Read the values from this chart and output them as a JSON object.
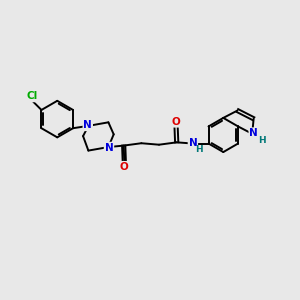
{
  "background_color": "#e8e8e8",
  "bond_color": "#000000",
  "bond_width": 1.4,
  "atom_colors": {
    "N": "#0000dd",
    "O": "#dd0000",
    "Cl": "#00aa00",
    "H": "#007777",
    "C": "#000000"
  },
  "fig_width": 3.0,
  "fig_height": 3.0,
  "dpi": 100
}
